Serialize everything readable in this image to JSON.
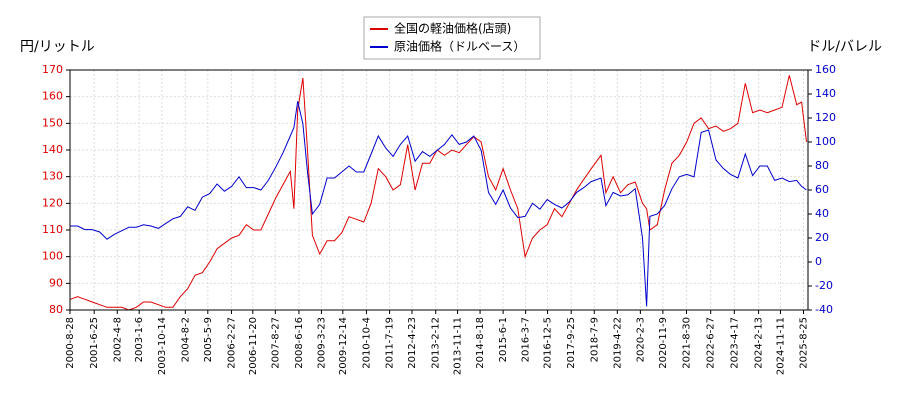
{
  "chart_data": {
    "type": "line",
    "y_label": "円/リットル",
    "y2_label": "ドル/バレル",
    "x": [
      "2000-9-1",
      "2000-12-1",
      "2001-3-1",
      "2001-6-1",
      "2001-9-1",
      "2001-12-1",
      "2002-3-1",
      "2002-6-1",
      "2002-9-1",
      "2002-12-1",
      "2003-3-1",
      "2003-6-1",
      "2003-9-1",
      "2003-12-1",
      "2004-3-1",
      "2004-6-1",
      "2004-9-1",
      "2004-12-1",
      "2005-3-1",
      "2005-6-1",
      "2005-9-1",
      "2005-12-1",
      "2006-3-1",
      "2006-6-1",
      "2006-9-1",
      "2006-12-1",
      "2007-3-1",
      "2007-6-1",
      "2007-9-1",
      "2007-12-1",
      "2008-3-1",
      "2008-4-14",
      "2008-6-1",
      "2008-8-4",
      "2008-10-1",
      "2008-12-1",
      "2009-3-1",
      "2009-6-1",
      "2009-9-1",
      "2009-12-1",
      "2010-3-1",
      "2010-6-1",
      "2010-9-1",
      "2010-12-1",
      "2011-3-1",
      "2011-6-1",
      "2011-9-1",
      "2011-12-1",
      "2012-3-1",
      "2012-6-1",
      "2012-9-1",
      "2012-12-1",
      "2013-3-1",
      "2013-6-1",
      "2013-9-1",
      "2013-12-1",
      "2014-3-1",
      "2014-6-1",
      "2014-9-1",
      "2014-12-1",
      "2015-3-1",
      "2015-6-1",
      "2015-9-1",
      "2015-12-1",
      "2016-3-1",
      "2016-6-1",
      "2016-9-1",
      "2016-12-1",
      "2017-3-1",
      "2017-6-1",
      "2017-9-1",
      "2017-12-1",
      "2018-3-1",
      "2018-6-1",
      "2018-10-1",
      "2018-12-1",
      "2019-3-1",
      "2019-6-1",
      "2019-9-1",
      "2019-12-1",
      "2020-3-1",
      "2020-4-20",
      "2020-6-1",
      "2020-9-1",
      "2020-12-1",
      "2021-3-1",
      "2021-6-1",
      "2021-9-1",
      "2021-12-1",
      "2022-3-1",
      "2022-6-1",
      "2022-9-1",
      "2022-12-1",
      "2023-3-1",
      "2023-6-1",
      "2023-9-1",
      "2023-12-1",
      "2024-3-1",
      "2024-6-1",
      "2024-9-1",
      "2024-12-1",
      "2025-3-1",
      "2025-6-1",
      "2025-8-1",
      "2025-10-1"
    ],
    "series": [
      {
        "name": "全国の軽油価格(店頭)",
        "color": "#dd0000",
        "axis": "y",
        "values": [
          84,
          85,
          84,
          83,
          82,
          81,
          81,
          81,
          80,
          81,
          83,
          83,
          82,
          81,
          81,
          85,
          88,
          93,
          94,
          98,
          103,
          105,
          107,
          108,
          112,
          110,
          110,
          116,
          122,
          127,
          132,
          118,
          155,
          167,
          140,
          108,
          101,
          106,
          106,
          109,
          115,
          114,
          113,
          120,
          133,
          130,
          125,
          127,
          142,
          125,
          135,
          135,
          140,
          138,
          140,
          139,
          142,
          145,
          143,
          130,
          125,
          133,
          125,
          118,
          100,
          107,
          110,
          112,
          118,
          115,
          120,
          125,
          129,
          133,
          138,
          124,
          130,
          124,
          127,
          128,
          120,
          118,
          110,
          112,
          125,
          135,
          138,
          143,
          150,
          152,
          148,
          149,
          147,
          148,
          150,
          165,
          154,
          155,
          154,
          155,
          156,
          168,
          157,
          158,
          143
        ]
      },
      {
        "name": "原油価格（ドルベース）",
        "color": "#0000cc",
        "axis": "y2",
        "values": [
          30,
          30,
          27,
          27,
          25,
          19,
          23,
          26,
          29,
          29,
          31,
          30,
          28,
          32,
          36,
          38,
          46,
          43,
          54,
          57,
          65,
          59,
          63,
          71,
          62,
          62,
          60,
          68,
          79,
          91,
          105,
          112,
          134,
          115,
          75,
          40,
          48,
          70,
          70,
          75,
          80,
          75,
          75,
          90,
          105,
          95,
          88,
          98,
          105,
          84,
          92,
          88,
          93,
          98,
          106,
          98,
          100,
          105,
          93,
          58,
          48,
          60,
          45,
          37,
          38,
          49,
          44,
          52,
          48,
          45,
          50,
          58,
          62,
          67,
          70,
          47,
          58,
          55,
          56,
          61,
          20,
          -37,
          38,
          40,
          47,
          61,
          71,
          73,
          71,
          108,
          110,
          85,
          78,
          73,
          70,
          90,
          72,
          80,
          80,
          68,
          70,
          67,
          68,
          63,
          60
        ]
      }
    ],
    "xlim": [
      "2000-8-28",
      "2025-10-20"
    ],
    "xticks": [
      "2000-8-28",
      "2001-6-25",
      "2002-4-8",
      "2003-1-6",
      "2003-10-14",
      "2004-8-2",
      "2005-5-9",
      "2006-2-27",
      "2006-11-20",
      "2007-8-27",
      "2008-6-16",
      "2009-3-23",
      "2009-12-14",
      "2010-10-4",
      "2011-7-19",
      "2012-4-23",
      "2013-2-12",
      "2013-11-11",
      "2014-8-18",
      "2015-6-1",
      "2016-3-7",
      "2016-12-5",
      "2017-9-25",
      "2018-7-9",
      "2019-4-22",
      "2020-2-3",
      "2020-11-9",
      "2021-8-30",
      "2022-6-27",
      "2023-4-17",
      "2024-2-13",
      "2024-11-11",
      "2025-8-25"
    ],
    "ylim": [
      80,
      170
    ],
    "yticks": [
      80,
      90,
      100,
      110,
      120,
      130,
      140,
      150,
      160,
      170
    ],
    "y2lim": [
      -40,
      160
    ],
    "y2ticks": [
      -40,
      -20,
      0,
      20,
      40,
      60,
      80,
      100,
      120,
      140,
      160
    ],
    "grid": true,
    "legend": "top"
  }
}
